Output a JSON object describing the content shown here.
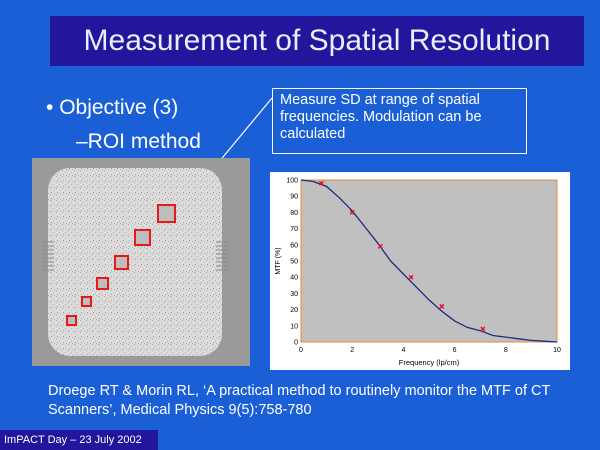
{
  "slide": {
    "title": "Measurement of Spatial Resolution",
    "bullet": "Objective (3)",
    "sub_bullet": "–ROI method",
    "callout": "Measure SD at range of spatial frequencies.  Modulation can be calculated",
    "citation": "Droege RT & Morin RL, ‘A practical method to routinely monitor the MTF of CT Scanners’, Medical Physics 9(5):758-780",
    "footer": "ImPACT Day – 23 July 2002"
  },
  "chart_data": {
    "type": "line",
    "xlabel": "Frequency (lp/cm)",
    "ylabel": "MTF (%)",
    "xlim": [
      0,
      10
    ],
    "ylim": [
      0,
      100
    ],
    "xticks": [
      "0",
      "2",
      "4",
      "6",
      "8",
      "10"
    ],
    "yticks": [
      "0",
      "10",
      "20",
      "30",
      "40",
      "50",
      "60",
      "70",
      "80",
      "90",
      "100"
    ],
    "series": [
      {
        "values_x": [
          0,
          0.5,
          1,
          1.5,
          2,
          2.5,
          3,
          3.5,
          4,
          4.5,
          5,
          5.5,
          6,
          6.5,
          7,
          7.5,
          8,
          8.5,
          9,
          9.5,
          10
        ],
        "values_y": [
          100,
          99,
          96,
          89,
          81,
          71,
          61,
          50,
          42,
          34,
          26,
          19,
          13,
          9,
          7,
          4,
          3,
          2,
          1,
          0.5,
          0
        ]
      },
      {
        "points_x": [
          0.8,
          2.0,
          3.1,
          4.3,
          5.5,
          7.1
        ],
        "points_y": [
          98,
          80,
          59,
          40,
          22,
          8
        ]
      }
    ],
    "colors": {
      "plot_bg": "#c0c0c0",
      "plot_border": "#e88a3a",
      "line": "#1e2a86",
      "marker": "#e0102a"
    },
    "grid": false
  },
  "phantom": {
    "roi_color": "#e81818",
    "roi_count": 6
  }
}
